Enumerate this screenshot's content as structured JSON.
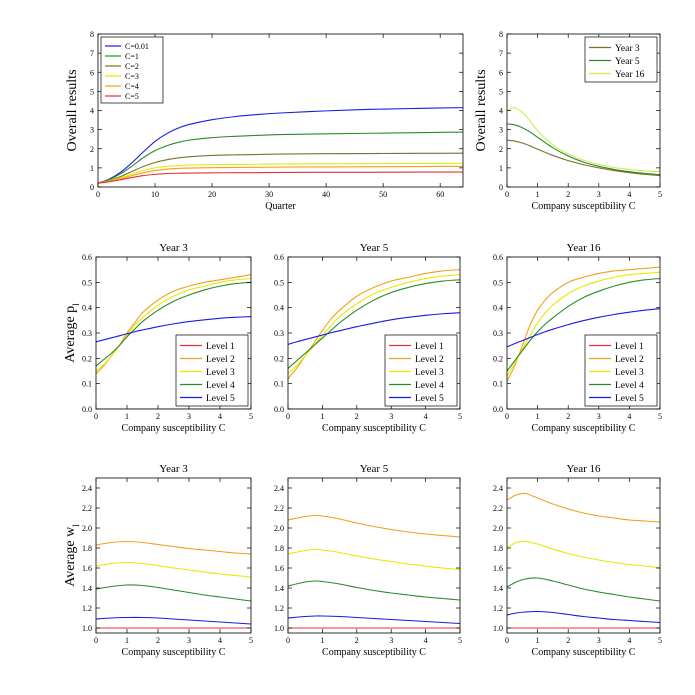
{
  "chart_data": [
    {
      "id": "p-top-left",
      "type": "line",
      "title": "",
      "xlabel": "Quarter",
      "ylabel": "Overall results",
      "xlim": [
        0,
        64
      ],
      "ylim": [
        0,
        8
      ],
      "xticks": [
        0,
        10,
        20,
        30,
        40,
        50,
        60
      ],
      "yticks": [
        0,
        1,
        2,
        3,
        4,
        5,
        6,
        7,
        8
      ],
      "legend_position": "top-left",
      "x": [
        0,
        2,
        4,
        6,
        8,
        10,
        12,
        14,
        16,
        20,
        24,
        28,
        32,
        40,
        48,
        56,
        64
      ],
      "series": [
        {
          "name": "C=0.01",
          "color": "#1a1ae6",
          "values": [
            0.2,
            0.42,
            0.78,
            1.28,
            1.85,
            2.38,
            2.78,
            3.07,
            3.27,
            3.52,
            3.68,
            3.79,
            3.87,
            3.98,
            4.06,
            4.11,
            4.15
          ]
        },
        {
          "name": "C=1",
          "color": "#2a8a2a",
          "values": [
            0.2,
            0.4,
            0.7,
            1.1,
            1.55,
            1.9,
            2.15,
            2.33,
            2.45,
            2.58,
            2.65,
            2.7,
            2.74,
            2.78,
            2.81,
            2.84,
            2.87
          ]
        },
        {
          "name": "C=2",
          "color": "#7a7028",
          "values": [
            0.2,
            0.35,
            0.55,
            0.82,
            1.08,
            1.28,
            1.42,
            1.52,
            1.58,
            1.65,
            1.68,
            1.7,
            1.72,
            1.74,
            1.75,
            1.76,
            1.77
          ]
        },
        {
          "name": "C=3",
          "color": "#e8e800",
          "values": [
            0.2,
            0.32,
            0.48,
            0.68,
            0.87,
            1.0,
            1.08,
            1.12,
            1.15,
            1.17,
            1.18,
            1.19,
            1.2,
            1.21,
            1.22,
            1.23,
            1.24
          ]
        },
        {
          "name": "C=4",
          "color": "#f0a020",
          "values": [
            0.2,
            0.3,
            0.43,
            0.6,
            0.75,
            0.86,
            0.93,
            0.97,
            0.99,
            1.01,
            1.02,
            1.03,
            1.04,
            1.05,
            1.06,
            1.07,
            1.08
          ]
        },
        {
          "name": "C=5",
          "color": "#e83030",
          "values": [
            0.2,
            0.28,
            0.38,
            0.5,
            0.6,
            0.66,
            0.7,
            0.72,
            0.73,
            0.74,
            0.75,
            0.75,
            0.76,
            0.77,
            0.77,
            0.78,
            0.78
          ]
        }
      ]
    },
    {
      "id": "p-top-right",
      "type": "line",
      "title": "",
      "xlabel": "Company susceptibility C",
      "ylabel": "Overall results",
      "xlim": [
        0,
        5
      ],
      "ylim": [
        0,
        8
      ],
      "xticks": [
        0,
        1,
        2,
        3,
        4,
        5
      ],
      "yticks": [
        0,
        1,
        2,
        3,
        4,
        5,
        6,
        7,
        8
      ],
      "legend_position": "top-right",
      "x": [
        0.01,
        0.25,
        0.5,
        0.75,
        1,
        1.5,
        2,
        2.5,
        3,
        3.5,
        4,
        4.5,
        5
      ],
      "series": [
        {
          "name": "Year 3",
          "color": "#7a7028",
          "values": [
            2.45,
            2.4,
            2.3,
            2.15,
            1.98,
            1.65,
            1.38,
            1.17,
            1.0,
            0.86,
            0.75,
            0.66,
            0.6
          ]
        },
        {
          "name": "Year 5",
          "color": "#2a8a2a",
          "values": [
            3.3,
            3.25,
            3.1,
            2.88,
            2.6,
            2.05,
            1.62,
            1.3,
            1.08,
            0.92,
            0.8,
            0.71,
            0.65
          ]
        },
        {
          "name": "Year 16",
          "color": "#c8f050",
          "values": [
            4.0,
            4.15,
            3.9,
            3.45,
            2.95,
            2.2,
            1.72,
            1.4,
            1.18,
            1.02,
            0.92,
            0.84,
            0.8
          ]
        }
      ]
    },
    {
      "id": "p-mid-1",
      "type": "line",
      "title": "Year 3",
      "xlabel": "Company susceptibility C",
      "ylabel": "Average p",
      "ylabel_sub": "l",
      "xlim": [
        0,
        5
      ],
      "ylim": [
        0,
        0.6
      ],
      "xticks": [
        0,
        1,
        2,
        3,
        4,
        5
      ],
      "yticks": [
        0.0,
        0.1,
        0.2,
        0.3,
        0.4,
        0.5,
        0.6
      ],
      "legend_position": "bottom-right",
      "x": [
        0,
        0.25,
        0.5,
        0.75,
        1,
        1.25,
        1.5,
        2,
        2.5,
        3,
        3.5,
        4,
        4.5,
        5
      ],
      "series": [
        {
          "name": "Level 1",
          "color": "#e83030",
          "values": [
            0,
            0,
            0,
            0,
            0,
            0,
            0,
            0,
            0,
            0,
            0,
            0,
            0,
            0
          ]
        },
        {
          "name": "Level 2",
          "color": "#f0a020",
          "values": [
            0.14,
            0.17,
            0.21,
            0.25,
            0.3,
            0.34,
            0.38,
            0.43,
            0.465,
            0.485,
            0.5,
            0.51,
            0.52,
            0.53
          ]
        },
        {
          "name": "Level 3",
          "color": "#e8e800",
          "values": [
            0.15,
            0.175,
            0.21,
            0.25,
            0.29,
            0.33,
            0.36,
            0.41,
            0.445,
            0.47,
            0.485,
            0.5,
            0.51,
            0.515
          ]
        },
        {
          "name": "Level 4",
          "color": "#2a8a2a",
          "values": [
            0.17,
            0.195,
            0.22,
            0.25,
            0.285,
            0.315,
            0.345,
            0.39,
            0.425,
            0.45,
            0.47,
            0.485,
            0.495,
            0.5
          ]
        },
        {
          "name": "Level 5",
          "color": "#1a1ae6",
          "values": [
            0.265,
            0.273,
            0.281,
            0.289,
            0.297,
            0.305,
            0.312,
            0.325,
            0.336,
            0.345,
            0.352,
            0.358,
            0.362,
            0.365
          ]
        }
      ]
    },
    {
      "id": "p-mid-2",
      "type": "line",
      "title": "Year 5",
      "xlabel": "Company susceptibility C",
      "ylabel": "",
      "xlim": [
        0,
        5
      ],
      "ylim": [
        0,
        0.6
      ],
      "xticks": [
        0,
        1,
        2,
        3,
        4,
        5
      ],
      "yticks": [
        0.0,
        0.1,
        0.2,
        0.3,
        0.4,
        0.5,
        0.6
      ],
      "legend_position": "bottom-right",
      "x": [
        0,
        0.25,
        0.5,
        0.75,
        1,
        1.25,
        1.5,
        2,
        2.5,
        3,
        3.5,
        4,
        4.5,
        5
      ],
      "series": [
        {
          "name": "Level 1",
          "color": "#e83030",
          "values": [
            0,
            0,
            0,
            0,
            0,
            0,
            0,
            0,
            0,
            0,
            0,
            0,
            0,
            0
          ]
        },
        {
          "name": "Level 2",
          "color": "#f0a020",
          "values": [
            0.12,
            0.16,
            0.21,
            0.26,
            0.31,
            0.355,
            0.39,
            0.445,
            0.48,
            0.505,
            0.52,
            0.535,
            0.545,
            0.55
          ]
        },
        {
          "name": "Level 3",
          "color": "#e8e800",
          "values": [
            0.14,
            0.17,
            0.21,
            0.25,
            0.29,
            0.33,
            0.365,
            0.415,
            0.455,
            0.48,
            0.5,
            0.515,
            0.525,
            0.53
          ]
        },
        {
          "name": "Level 4",
          "color": "#2a8a2a",
          "values": [
            0.16,
            0.19,
            0.22,
            0.25,
            0.28,
            0.31,
            0.34,
            0.39,
            0.43,
            0.46,
            0.48,
            0.495,
            0.505,
            0.51
          ]
        },
        {
          "name": "Level 5",
          "color": "#1a1ae6",
          "values": [
            0.255,
            0.265,
            0.274,
            0.283,
            0.292,
            0.301,
            0.309,
            0.325,
            0.339,
            0.352,
            0.362,
            0.37,
            0.376,
            0.38
          ]
        }
      ]
    },
    {
      "id": "p-mid-3",
      "type": "line",
      "title": "Year 16",
      "xlabel": "Company susceptibility C",
      "ylabel": "",
      "xlim": [
        0,
        5
      ],
      "ylim": [
        0,
        0.6
      ],
      "xticks": [
        0,
        1,
        2,
        3,
        4,
        5
      ],
      "yticks": [
        0.0,
        0.1,
        0.2,
        0.3,
        0.4,
        0.5,
        0.6
      ],
      "legend_position": "bottom-right",
      "x": [
        0,
        0.25,
        0.5,
        0.75,
        1,
        1.25,
        1.5,
        2,
        2.5,
        3,
        3.5,
        4,
        4.5,
        5
      ],
      "series": [
        {
          "name": "Level 1",
          "color": "#e83030",
          "values": [
            0,
            0,
            0,
            0,
            0,
            0,
            0,
            0,
            0,
            0,
            0,
            0,
            0,
            0
          ]
        },
        {
          "name": "Level 2",
          "color": "#f0a020",
          "values": [
            0.11,
            0.17,
            0.25,
            0.33,
            0.39,
            0.43,
            0.46,
            0.5,
            0.52,
            0.535,
            0.545,
            0.55,
            0.555,
            0.56
          ]
        },
        {
          "name": "Level 3",
          "color": "#e8e800",
          "values": [
            0.13,
            0.18,
            0.235,
            0.29,
            0.34,
            0.38,
            0.41,
            0.455,
            0.485,
            0.505,
            0.52,
            0.53,
            0.535,
            0.54
          ]
        },
        {
          "name": "Level 4",
          "color": "#2a8a2a",
          "values": [
            0.15,
            0.19,
            0.23,
            0.27,
            0.305,
            0.335,
            0.36,
            0.405,
            0.44,
            0.465,
            0.485,
            0.5,
            0.51,
            0.515
          ]
        },
        {
          "name": "Level 5",
          "color": "#1a1ae6",
          "values": [
            0.245,
            0.258,
            0.27,
            0.282,
            0.294,
            0.305,
            0.315,
            0.333,
            0.349,
            0.362,
            0.373,
            0.382,
            0.39,
            0.396
          ]
        }
      ]
    },
    {
      "id": "p-bot-1",
      "type": "line",
      "title": "Year 3",
      "xlabel": "Company susceptibility C",
      "ylabel": "Average w",
      "ylabel_sub": "l",
      "xlim": [
        0,
        5
      ],
      "ylim": [
        0.95,
        2.5
      ],
      "xticks": [
        0,
        1,
        2,
        3,
        4,
        5
      ],
      "yticks": [
        1.0,
        1.2,
        1.4,
        1.6,
        1.8,
        2.0,
        2.2,
        2.4
      ],
      "legend_position": "none",
      "x": [
        0,
        0.5,
        1,
        1.5,
        2,
        2.5,
        3,
        3.5,
        4,
        4.5,
        5
      ],
      "series": [
        {
          "name": "Level 1",
          "color": "#e83030",
          "values": [
            1.0,
            1.0,
            1.0,
            1.0,
            1.0,
            1.0,
            1.0,
            1.0,
            1.0,
            1.0,
            1.0
          ]
        },
        {
          "name": "Level 2",
          "color": "#f0a020",
          "values": [
            1.83,
            1.855,
            1.865,
            1.855,
            1.835,
            1.815,
            1.795,
            1.78,
            1.765,
            1.75,
            1.74
          ]
        },
        {
          "name": "Level 3",
          "color": "#e8e800",
          "values": [
            1.62,
            1.645,
            1.655,
            1.645,
            1.625,
            1.6,
            1.58,
            1.56,
            1.54,
            1.525,
            1.51
          ]
        },
        {
          "name": "Level 4",
          "color": "#2a8a2a",
          "values": [
            1.39,
            1.415,
            1.43,
            1.425,
            1.405,
            1.38,
            1.355,
            1.33,
            1.31,
            1.29,
            1.27
          ]
        },
        {
          "name": "Level 5",
          "color": "#1a1ae6",
          "values": [
            1.09,
            1.1,
            1.105,
            1.105,
            1.1,
            1.09,
            1.08,
            1.07,
            1.06,
            1.05,
            1.04
          ]
        }
      ]
    },
    {
      "id": "p-bot-2",
      "type": "line",
      "title": "Year 5",
      "xlabel": "Company susceptibility C",
      "ylabel": "",
      "xlim": [
        0,
        5
      ],
      "ylim": [
        0.95,
        2.5
      ],
      "xticks": [
        0,
        1,
        2,
        3,
        4,
        5
      ],
      "yticks": [
        1.0,
        1.2,
        1.4,
        1.6,
        1.8,
        2.0,
        2.2,
        2.4
      ],
      "legend_position": "none",
      "x": [
        0,
        0.5,
        0.8,
        1,
        1.5,
        2,
        2.5,
        3,
        3.5,
        4,
        4.5,
        5
      ],
      "series": [
        {
          "name": "Level 1",
          "color": "#e83030",
          "values": [
            1.0,
            1.0,
            1.0,
            1.0,
            1.0,
            1.0,
            1.0,
            1.0,
            1.0,
            1.0,
            1.0,
            1.0
          ]
        },
        {
          "name": "Level 2",
          "color": "#f0a020",
          "values": [
            2.08,
            2.115,
            2.125,
            2.12,
            2.09,
            2.05,
            2.015,
            1.985,
            1.96,
            1.94,
            1.925,
            1.91
          ]
        },
        {
          "name": "Level 3",
          "color": "#e8e800",
          "values": [
            1.74,
            1.775,
            1.785,
            1.78,
            1.755,
            1.72,
            1.69,
            1.665,
            1.64,
            1.62,
            1.6,
            1.585
          ]
        },
        {
          "name": "Level 4",
          "color": "#2a8a2a",
          "values": [
            1.42,
            1.46,
            1.47,
            1.465,
            1.44,
            1.405,
            1.375,
            1.35,
            1.33,
            1.31,
            1.295,
            1.28
          ]
        },
        {
          "name": "Level 5",
          "color": "#1a1ae6",
          "values": [
            1.1,
            1.115,
            1.12,
            1.12,
            1.115,
            1.105,
            1.095,
            1.085,
            1.075,
            1.065,
            1.055,
            1.045
          ]
        }
      ]
    },
    {
      "id": "p-bot-3",
      "type": "line",
      "title": "Year 16",
      "xlabel": "Company susceptibility C",
      "ylabel": "",
      "xlim": [
        0,
        5
      ],
      "ylim": [
        0.95,
        2.5
      ],
      "xticks": [
        0,
        1,
        2,
        3,
        4,
        5
      ],
      "yticks": [
        1.0,
        1.2,
        1.4,
        1.6,
        1.8,
        2.0,
        2.2,
        2.4
      ],
      "legend_position": "none",
      "x": [
        0,
        0.3,
        0.6,
        1,
        1.5,
        2,
        2.5,
        3,
        3.5,
        4,
        4.5,
        5
      ],
      "series": [
        {
          "name": "Level 1",
          "color": "#e83030",
          "values": [
            1.0,
            1.0,
            1.0,
            1.0,
            1.0,
            1.0,
            1.0,
            1.0,
            1.0,
            1.0,
            1.0,
            1.0
          ]
        },
        {
          "name": "Level 2",
          "color": "#f0a020",
          "values": [
            2.28,
            2.33,
            2.345,
            2.3,
            2.24,
            2.19,
            2.15,
            2.12,
            2.1,
            2.08,
            2.07,
            2.06
          ]
        },
        {
          "name": "Level 3",
          "color": "#e8e800",
          "values": [
            1.8,
            1.855,
            1.865,
            1.84,
            1.79,
            1.745,
            1.71,
            1.68,
            1.655,
            1.635,
            1.62,
            1.6
          ]
        },
        {
          "name": "Level 4",
          "color": "#2a8a2a",
          "values": [
            1.41,
            1.46,
            1.49,
            1.5,
            1.47,
            1.43,
            1.39,
            1.36,
            1.335,
            1.31,
            1.29,
            1.27
          ]
        },
        {
          "name": "Level 5",
          "color": "#1a1ae6",
          "values": [
            1.13,
            1.15,
            1.16,
            1.165,
            1.155,
            1.135,
            1.115,
            1.1,
            1.085,
            1.075,
            1.065,
            1.055
          ]
        }
      ]
    }
  ]
}
